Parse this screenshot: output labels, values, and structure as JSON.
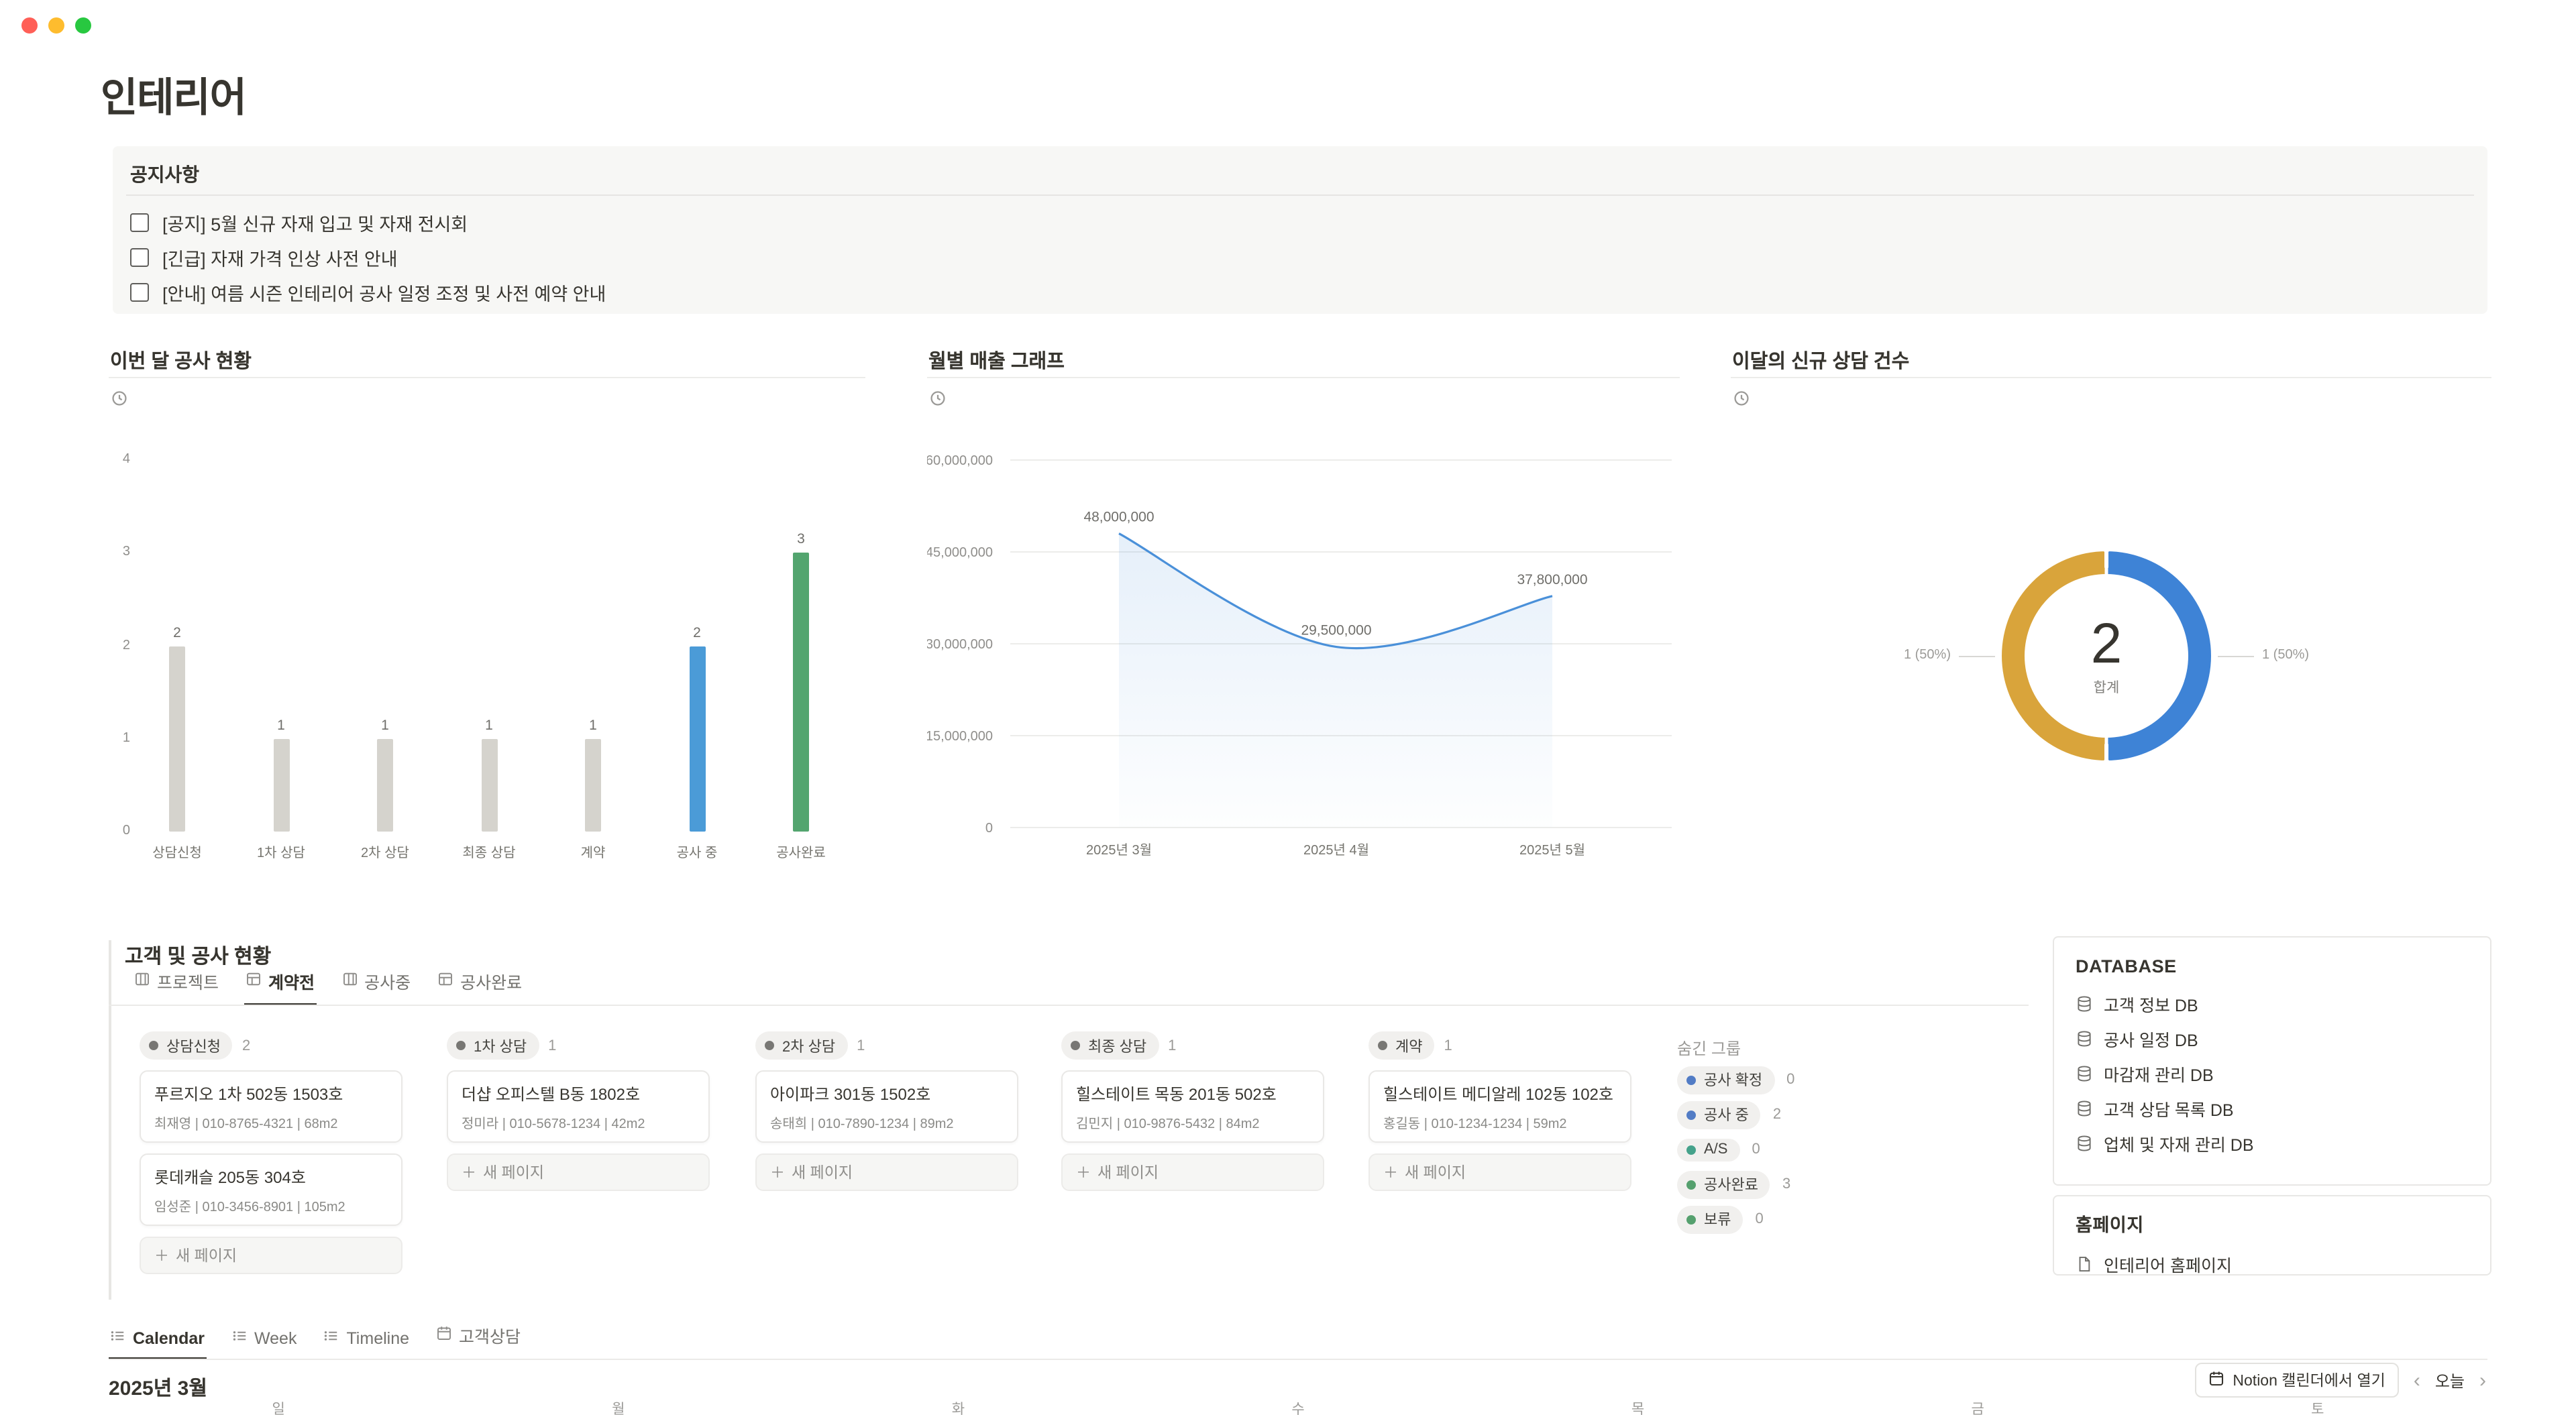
{
  "page": {
    "title": "인테리어"
  },
  "icons": {
    "chevron_left": "‹",
    "chevron_right": "›",
    "plus": "＋"
  },
  "notice": {
    "title": "공지사항",
    "items": [
      "[공지] 5월 신규 자재 입고 및 자재 전시회",
      "[긴급] 자재 가격 인상 사전 안내",
      "[안내] 여름 시즌 인테리어 공사 일정 조정 및 사전 예약 안내"
    ]
  },
  "chart_data": [
    {
      "type": "bar",
      "title": "이번 달 공사 현황",
      "categories": [
        "상담신청",
        "1차 상담",
        "2차 상담",
        "최종 상담",
        "계약",
        "공사 중",
        "공사완료"
      ],
      "values": [
        2,
        1,
        1,
        1,
        1,
        2,
        3
      ],
      "bar_colors": [
        "#d5d3cd",
        "#d5d3cd",
        "#d5d3cd",
        "#d5d3cd",
        "#d5d3cd",
        "#4b9bd7",
        "#53a56f"
      ],
      "ylim": [
        0,
        4
      ],
      "yticks": [
        0,
        1,
        2,
        3,
        4
      ],
      "grid": false,
      "legend": "none"
    },
    {
      "type": "line",
      "title": "월별 매출 그래프",
      "x": [
        "2025년 3월",
        "2025년 4월",
        "2025년 5월"
      ],
      "values": [
        48000000,
        29500000,
        37800000
      ],
      "point_labels": [
        "48,000,000",
        "29,500,000",
        "37,800,000"
      ],
      "ylim": [
        0,
        60000000
      ],
      "ytick_labels": [
        "60,000,000",
        "45,000,000",
        "30,000,000",
        "15,000,000",
        "0"
      ],
      "line_color": "#4a90d9",
      "area": true,
      "grid": true
    },
    {
      "type": "donut",
      "title": "이달의 신규 상담 건수",
      "slices": [
        {
          "label": "1 (50%)",
          "value": 1,
          "color": "#3e83d6",
          "side": "right"
        },
        {
          "label": "1 (50%)",
          "value": 1,
          "color": "#d9a43b",
          "side": "left"
        }
      ],
      "center_value": "2",
      "center_label": "합계"
    }
  ],
  "board": {
    "title": "고객 및 공사 현황",
    "tabs": [
      {
        "label": "프로젝트",
        "icon": "board-icon",
        "active": false
      },
      {
        "label": "계약전",
        "icon": "table-icon",
        "active": true
      },
      {
        "label": "공사중",
        "icon": "board-icon",
        "active": false
      },
      {
        "label": "공사완료",
        "icon": "table-icon",
        "active": false
      }
    ],
    "new_page_label": "새 페이지",
    "columns": [
      {
        "name": "상담신청",
        "count": 2,
        "dot_color": "#787774",
        "cards": [
          {
            "title": "푸르지오 1차 502동 1503호",
            "subtitle": "최재영 | 010-8765-4321 | 68m2"
          },
          {
            "title": "롯데캐슬 205동 304호",
            "subtitle": "임성준 | 010-3456-8901 | 105m2"
          }
        ]
      },
      {
        "name": "1차 상담",
        "count": 1,
        "dot_color": "#787774",
        "cards": [
          {
            "title": "더샵 오피스텔 B동 1802호",
            "subtitle": "정미라 | 010-5678-1234 | 42m2"
          }
        ]
      },
      {
        "name": "2차 상담",
        "count": 1,
        "dot_color": "#787774",
        "cards": [
          {
            "title": "아이파크 301동 1502호",
            "subtitle": "송태희 | 010-7890-1234 | 89m2"
          }
        ]
      },
      {
        "name": "최종 상담",
        "count": 1,
        "dot_color": "#787774",
        "cards": [
          {
            "title": "힐스테이트 목동 201동 502호",
            "subtitle": "김민지 | 010-9876-5432 | 84m2"
          }
        ]
      },
      {
        "name": "계약",
        "count": 1,
        "dot_color": "#787774",
        "cards": [
          {
            "title": "힐스테이트 메디알레 102동 102호",
            "subtitle": "홍길동 | 010-1234-1234 | 59m2"
          }
        ]
      }
    ],
    "hidden": {
      "label": "숨긴 그룹",
      "groups": [
        {
          "name": "공사 확정",
          "count": 0,
          "dot_color": "#527cc5"
        },
        {
          "name": "공사 중",
          "count": 2,
          "dot_color": "#527cc5"
        },
        {
          "name": "A/S",
          "count": 0,
          "dot_color": "#45a28b"
        },
        {
          "name": "공사완료",
          "count": 3,
          "dot_color": "#55a06e"
        },
        {
          "name": "보류",
          "count": 0,
          "dot_color": "#55a06e"
        }
      ]
    }
  },
  "database_panel": {
    "title": "DATABASE",
    "items": [
      "고객 정보 DB",
      "공사 일정 DB",
      "마감재 관리 DB",
      "고객 상담 목록 DB",
      "업체 및 자재 관리 DB"
    ]
  },
  "homepage_panel": {
    "title": "홈페이지",
    "items": [
      "인테리어 홈페이지"
    ]
  },
  "calendar": {
    "tabs": [
      {
        "label": "Calendar",
        "icon": "list-icon",
        "active": true
      },
      {
        "label": "Week",
        "icon": "list-icon",
        "active": false
      },
      {
        "label": "Timeline",
        "icon": "list-icon",
        "active": false
      },
      {
        "label": "고객상담",
        "icon": "calendar-icon",
        "active": false
      }
    ],
    "month": "2025년 3월",
    "open_button": "Notion 캘린더에서 열기",
    "today_button": "오늘",
    "weekdays": [
      "일",
      "월",
      "화",
      "수",
      "목",
      "금",
      "토"
    ]
  },
  "colors": {
    "accent_blue": "#4b9bd7",
    "accent_green": "#53a56f",
    "accent_yellow": "#d9a43b",
    "text": "#37352f",
    "muted": "#787774",
    "callout_bg": "#f7f7f5"
  }
}
